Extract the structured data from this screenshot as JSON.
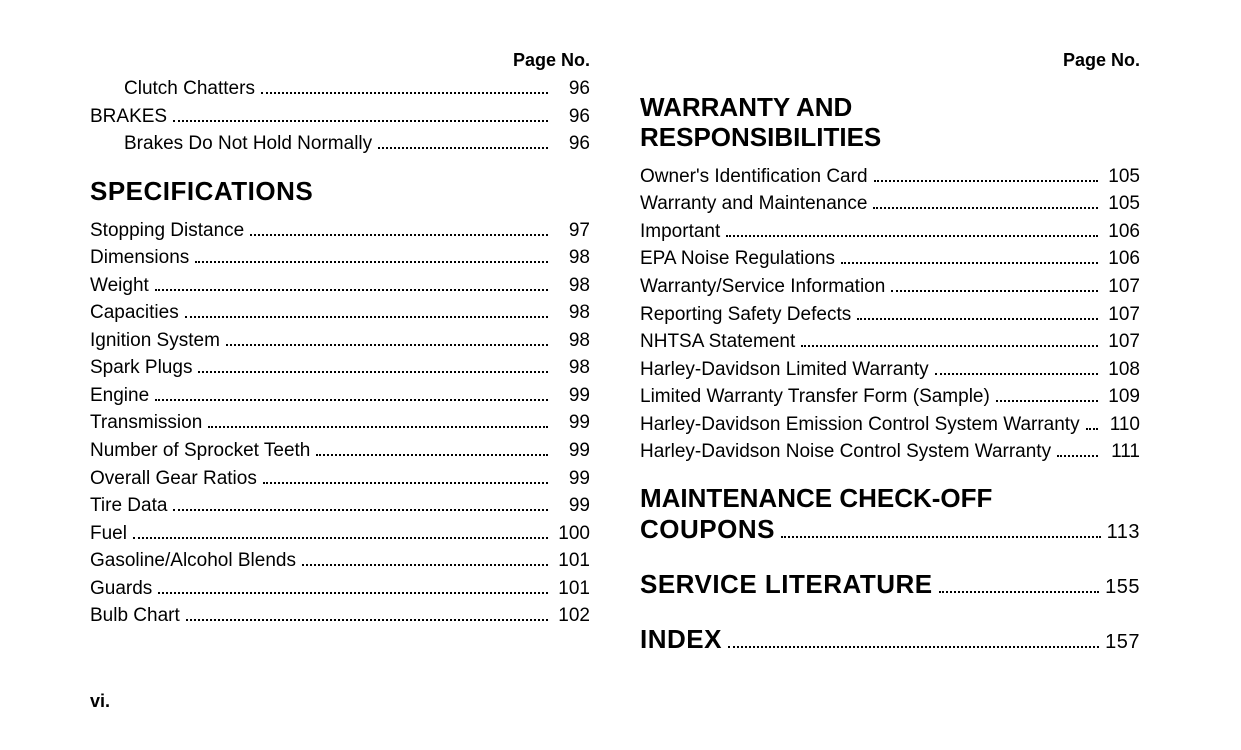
{
  "page_header": "Page No.",
  "footer_page": "vi.",
  "font_family": "Arial, Helvetica, sans-serif",
  "colors": {
    "text": "#000000",
    "background": "#ffffff",
    "dot_leader": "#000000"
  },
  "typography": {
    "body_fontsize_pt": 14,
    "heading_fontsize_pt": 20,
    "heading_weight": 900
  },
  "left_column": {
    "pre_items": [
      {
        "label": "Clutch Chatters",
        "page": "96",
        "indent": 1
      },
      {
        "label": "BRAKES",
        "page": "96",
        "indent": 0
      },
      {
        "label": "Brakes Do Not Hold Normally",
        "page": "96",
        "indent": 1
      }
    ],
    "specifications_heading": "SPECIFICATIONS",
    "specifications_items": [
      {
        "label": "Stopping Distance",
        "page": "97"
      },
      {
        "label": "Dimensions",
        "page": "98"
      },
      {
        "label": "Weight",
        "page": "98"
      },
      {
        "label": "Capacities",
        "page": "98"
      },
      {
        "label": "Ignition System",
        "page": "98"
      },
      {
        "label": "Spark Plugs",
        "page": "98"
      },
      {
        "label": "Engine",
        "page": "99"
      },
      {
        "label": "Transmission",
        "page": "99"
      },
      {
        "label": "Number of Sprocket Teeth",
        "page": "99"
      },
      {
        "label": "Overall Gear Ratios",
        "page": "99"
      },
      {
        "label": "Tire Data",
        "page": "99"
      },
      {
        "label": "Fuel",
        "page": "100"
      },
      {
        "label": "Gasoline/Alcohol Blends",
        "page": "101"
      },
      {
        "label": "Guards",
        "page": "101"
      },
      {
        "label": "Bulb Chart",
        "page": "102"
      }
    ]
  },
  "right_column": {
    "warranty_heading_line1": "WARRANTY AND",
    "warranty_heading_line2": "RESPONSIBILITIES",
    "warranty_items": [
      {
        "label": "Owner's Identification Card",
        "page": "105"
      },
      {
        "label": "Warranty and Maintenance",
        "page": "105"
      },
      {
        "label": "Important",
        "page": "106"
      },
      {
        "label": "EPA Noise Regulations",
        "page": "106"
      },
      {
        "label": "Warranty/Service Information",
        "page": "107"
      },
      {
        "label": "Reporting Safety Defects",
        "page": "107"
      },
      {
        "label": "NHTSA Statement",
        "page": "107"
      },
      {
        "label": "Harley-Davidson Limited Warranty",
        "page": "108"
      },
      {
        "label": "Limited Warranty Transfer Form (Sample)",
        "page": "109"
      },
      {
        "label": "Harley-Davidson Emission Control System Warranty",
        "page": "110"
      },
      {
        "label": "Harley-Davidson Noise Control System Warranty",
        "page": "111"
      }
    ],
    "maintenance_heading_line1": "MAINTENANCE CHECK-OFF",
    "maintenance_heading_line2": "COUPONS",
    "maintenance_page": "113",
    "service_lit_heading": "SERVICE LITERATURE",
    "service_lit_page": "155",
    "index_heading": "INDEX",
    "index_page": "157"
  }
}
